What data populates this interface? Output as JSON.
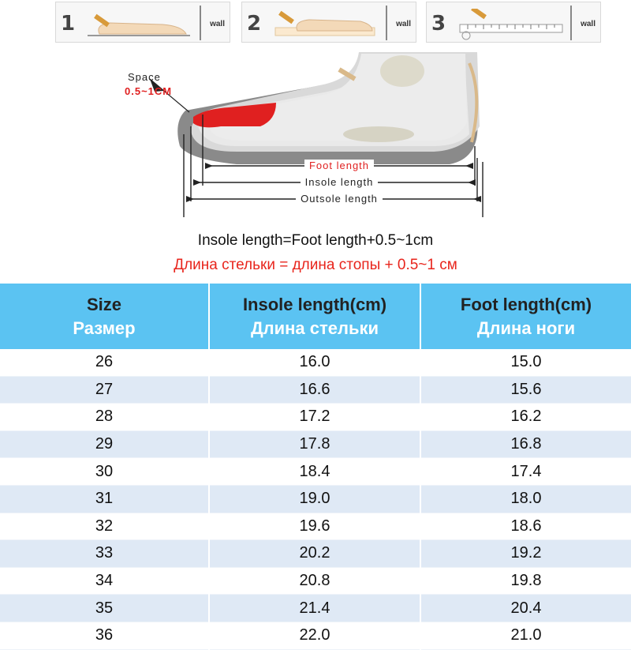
{
  "steps": [
    {
      "number": "1",
      "wall": "wall"
    },
    {
      "number": "2",
      "wall": "wall"
    },
    {
      "number": "3",
      "wall": "wall"
    }
  ],
  "diagram": {
    "space_label": "Space",
    "space_value": "0.5~1CM",
    "foot_length": "Foot length",
    "insole_length": "Insole length",
    "outsole_length": "Outsole length",
    "colors": {
      "accent_red": "#e02020",
      "header_blue": "#5bc3f2",
      "stripe": "#dfe9f5"
    }
  },
  "formula": {
    "en": "Insole length=Foot length+0.5~1cm",
    "ru": "Длина стельки = длина стопы + 0.5~1 см"
  },
  "table": {
    "headers": [
      {
        "en": "Size",
        "ru": "Размер"
      },
      {
        "en": "Insole length(cm)",
        "ru": "Длина стельки"
      },
      {
        "en": "Foot length(cm)",
        "ru": "Длина ноги"
      }
    ],
    "rows": [
      [
        "26",
        "16.0",
        "15.0"
      ],
      [
        "27",
        "16.6",
        "15.6"
      ],
      [
        "28",
        "17.2",
        "16.2"
      ],
      [
        "29",
        "17.8",
        "16.8"
      ],
      [
        "30",
        "18.4",
        "17.4"
      ],
      [
        "31",
        "19.0",
        "18.0"
      ],
      [
        "32",
        "19.6",
        "18.6"
      ],
      [
        "33",
        "20.2",
        "19.2"
      ],
      [
        "34",
        "20.8",
        "19.8"
      ],
      [
        "35",
        "21.4",
        "20.4"
      ],
      [
        "36",
        "22.0",
        "21.0"
      ]
    ]
  }
}
